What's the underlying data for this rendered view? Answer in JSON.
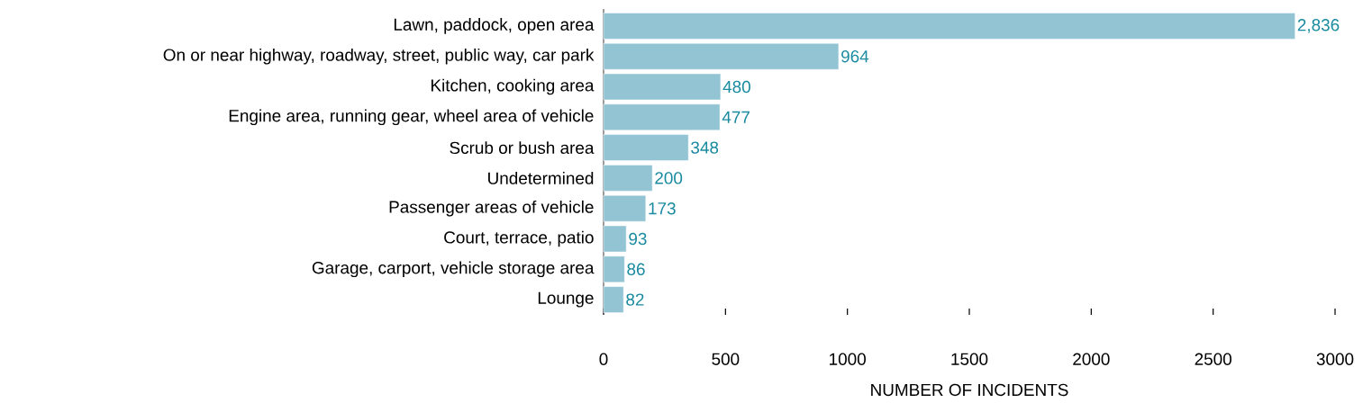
{
  "chart_data": {
    "type": "bar",
    "orientation": "horizontal",
    "categories": [
      "Lawn, paddock, open area",
      "On or near highway, roadway, street, public way, car park",
      "Kitchen, cooking area",
      "Engine area, running gear, wheel area of vehicle",
      "Scrub or bush area",
      "Undetermined",
      "Passenger areas of vehicle",
      "Court, terrace, patio",
      "Garage, carport, vehicle storage area",
      "Lounge"
    ],
    "values": [
      2836,
      964,
      480,
      477,
      348,
      200,
      173,
      93,
      86,
      82
    ],
    "value_labels": [
      "2,836",
      "964",
      "480",
      "477",
      "348",
      "200",
      "173",
      "93",
      "86",
      "82"
    ],
    "color": "#93c4d4",
    "xlim": [
      0,
      3000
    ],
    "xticks": [
      0,
      500,
      1000,
      1500,
      2000,
      2500,
      3000
    ],
    "xlabel": "NUMBER OF INCIDENTS",
    "grid": false
  }
}
